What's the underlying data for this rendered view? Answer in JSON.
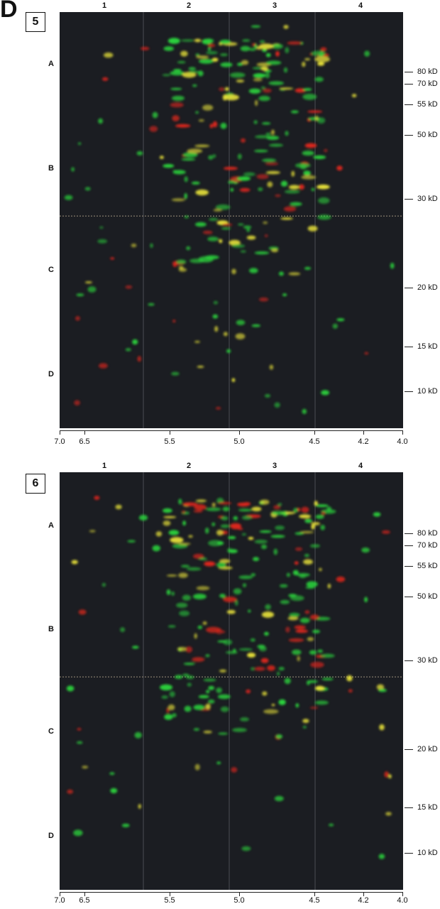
{
  "figure_letter": "D",
  "columns": [
    "1",
    "2",
    "3",
    "4"
  ],
  "rows": [
    "A",
    "B",
    "C",
    "D"
  ],
  "ph_ticks": [
    "7.0",
    "6.5",
    "5.5",
    "5.0",
    "4.5",
    "4.2",
    "4.0"
  ],
  "panels": [
    {
      "id": "5",
      "mw_markers": [
        "80 kD",
        "70 kD",
        "55 kD",
        "50 kD",
        "30 kD",
        "20 kD",
        "15 kD",
        "10 kD"
      ]
    },
    {
      "id": "6",
      "mw_markers": [
        "80 kD",
        "70 kD",
        "55 kD",
        "50 kD",
        "30 kD",
        "20 kD",
        "15 kD",
        "10 kD"
      ]
    }
  ],
  "colors": {
    "gel_background": "#1b1d22",
    "spot_green": "#2bd13c",
    "spot_red": "#e0261c",
    "spot_yellow": "#e8e23a",
    "grid_line": "#6d6f77"
  }
}
